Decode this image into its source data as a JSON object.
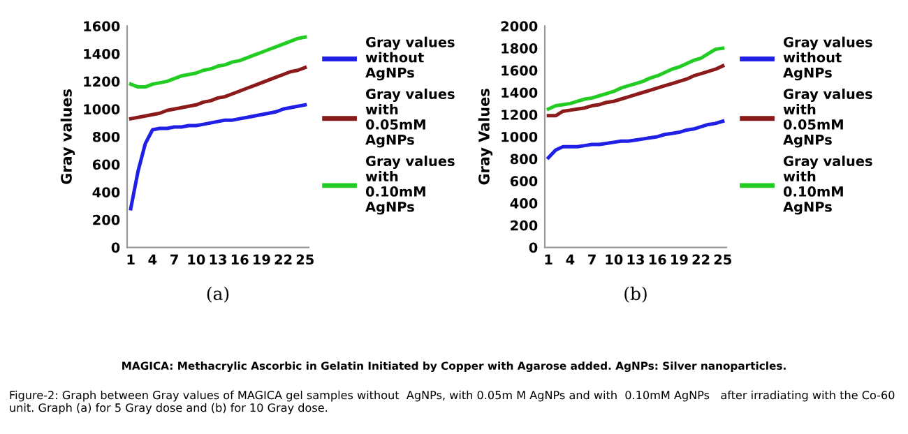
{
  "chart_data": [
    {
      "type": "line",
      "xlabel": "(a)",
      "ylabel": "Gray values",
      "categories": [
        "1",
        null,
        null,
        "4",
        null,
        null,
        "7",
        null,
        null,
        "10",
        null,
        null,
        "13",
        null,
        null,
        "16",
        null,
        null,
        "19",
        null,
        null,
        "22",
        null,
        null,
        "25"
      ],
      "series": [
        {
          "name": "Gray values\nwithout\nAgNPs",
          "color": "#1f1fe6",
          "values": [
            280,
            550,
            750,
            850,
            860,
            860,
            870,
            870,
            880,
            880,
            890,
            900,
            910,
            920,
            920,
            930,
            940,
            950,
            960,
            970,
            980,
            1000,
            1010,
            1020,
            1030
          ]
        },
        {
          "name": "Gray values\nwith\n0.05mM\nAgNPs",
          "color": "#8b1a1a",
          "values": [
            930,
            940,
            950,
            960,
            970,
            990,
            1000,
            1010,
            1020,
            1030,
            1050,
            1060,
            1080,
            1090,
            1110,
            1130,
            1150,
            1170,
            1190,
            1210,
            1230,
            1250,
            1270,
            1280,
            1300
          ]
        },
        {
          "name": "Gray values\nwith\n0.10mM\nAgNPs",
          "color": "#22cc22",
          "values": [
            1180,
            1160,
            1160,
            1180,
            1190,
            1200,
            1220,
            1240,
            1250,
            1260,
            1280,
            1290,
            1310,
            1320,
            1340,
            1350,
            1370,
            1390,
            1410,
            1430,
            1450,
            1470,
            1490,
            1510,
            1520
          ]
        }
      ],
      "ylim": [
        0,
        1600
      ],
      "yticks": [
        0,
        200,
        400,
        600,
        800,
        1000,
        1200,
        1400,
        1600
      ],
      "grid": false,
      "legend": "right",
      "marker": "none",
      "line_style": "solid",
      "annotations": [
        "MAGICA: Methacrylic Ascorbic in Gelatin Initiated by Copper with Agarose added. AgNPs: Silver nanoparticles.",
        "Figure-2: Graph between Gray values of MAGICA gel samples without  AgNPs, with 0.05m M AgNPs and with  0.10mM AgNPs   after irradiating with the Co-60 unit. Graph (a) for 5 Gray dose and (b) for 10 Gray dose."
      ]
    },
    {
      "type": "line",
      "xlabel": "(b)",
      "ylabel": "Gray Values",
      "categories": [
        "1",
        null,
        null,
        "4",
        null,
        null,
        "7",
        null,
        null,
        "10",
        null,
        null,
        "13",
        null,
        null,
        "16",
        null,
        null,
        "19",
        null,
        null,
        "22",
        null,
        null,
        "25"
      ],
      "series": [
        {
          "name": "Gray values\nwithout\nAgNPs",
          "color": "#1f1fe6",
          "values": [
            810,
            880,
            910,
            910,
            910,
            920,
            930,
            930,
            940,
            950,
            960,
            960,
            970,
            980,
            990,
            1000,
            1020,
            1030,
            1040,
            1060,
            1070,
            1090,
            1110,
            1120,
            1140
          ]
        },
        {
          "name": "Gray values\nwith\n0.05mM\nAgNPs",
          "color": "#8b1a1a",
          "values": [
            1190,
            1190,
            1230,
            1240,
            1250,
            1260,
            1280,
            1290,
            1310,
            1320,
            1340,
            1360,
            1380,
            1400,
            1420,
            1440,
            1460,
            1480,
            1500,
            1520,
            1550,
            1570,
            1590,
            1610,
            1640
          ]
        },
        {
          "name": "Gray values\nwith\n0.10mM\nAgNPs",
          "color": "#22cc22",
          "values": [
            1250,
            1280,
            1290,
            1300,
            1320,
            1340,
            1350,
            1370,
            1390,
            1410,
            1440,
            1460,
            1480,
            1500,
            1530,
            1550,
            1580,
            1610,
            1630,
            1660,
            1690,
            1710,
            1750,
            1790,
            1800
          ]
        }
      ],
      "ylim": [
        0,
        2000
      ],
      "yticks": [
        0,
        200,
        400,
        600,
        800,
        1000,
        1200,
        1400,
        1600,
        1800,
        2000
      ],
      "grid": false,
      "legend": "right",
      "marker": "none",
      "line_style": "solid"
    }
  ]
}
